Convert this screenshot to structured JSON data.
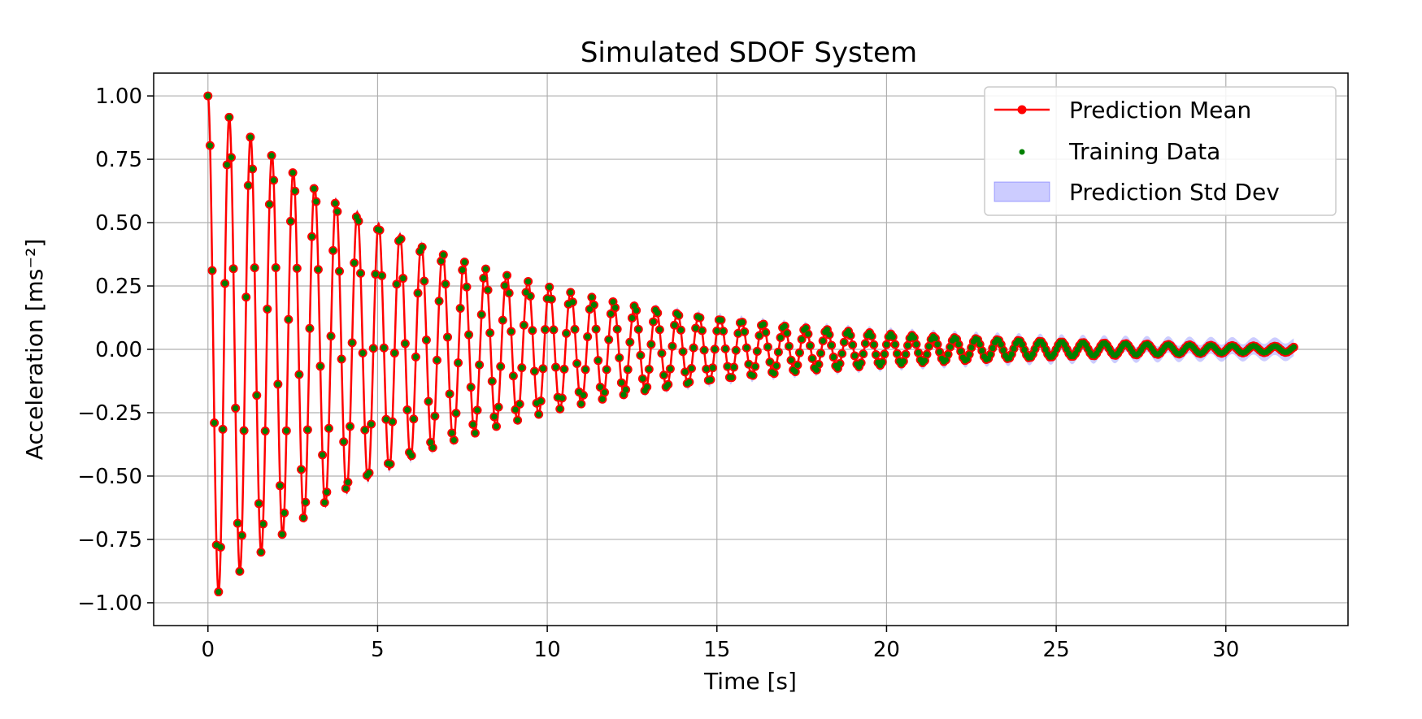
{
  "chart_data": {
    "type": "line",
    "title": "Simulated SDOF System",
    "xlabel": "Time [s]",
    "ylabel": "Acceleration [ms⁻²]",
    "xlim": [
      -1.6,
      33.6
    ],
    "ylim": [
      -1.09,
      1.09
    ],
    "xticks": [
      0,
      5,
      10,
      15,
      20,
      25,
      30
    ],
    "yticks": [
      1.0,
      0.75,
      0.5,
      0.25,
      0.0,
      -0.25,
      -0.5,
      -0.75,
      -1.0
    ],
    "xtick_labels": [
      "0",
      "5",
      "10",
      "15",
      "20",
      "25",
      "30"
    ],
    "ytick_labels": [
      "1.00",
      "0.75",
      "0.50",
      "0.25",
      "0.00",
      "−0.25",
      "−0.50",
      "−0.75",
      "−1.00"
    ],
    "grid": true,
    "legend_placement": "top-right",
    "series": [
      {
        "name": "Prediction Mean",
        "kind": "line-with-markers",
        "color": "#ff0000"
      },
      {
        "name": "Training Data",
        "kind": "scatter",
        "color": "#008000"
      },
      {
        "name": "Prediction Std Dev",
        "kind": "band",
        "color": "#0000ff",
        "opacity": 0.2
      }
    ],
    "signal": {
      "description_model": "damped cosine",
      "amplitude_start": 1.0,
      "decay_rate_per_s": 0.1395,
      "frequency_hz": 1.59,
      "duration_s": 32.0,
      "sample_interval_s": 0.0625,
      "band_halfwidth_start": 0.01,
      "band_halfwidth_end": 0.035
    }
  }
}
